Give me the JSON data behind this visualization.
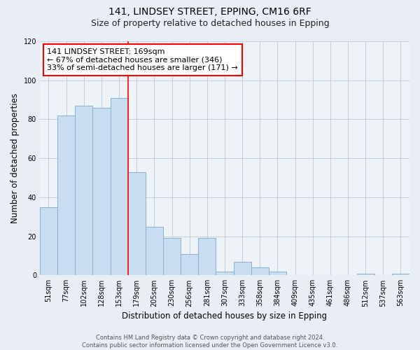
{
  "title": "141, LINDSEY STREET, EPPING, CM16 6RF",
  "subtitle": "Size of property relative to detached houses in Epping",
  "xlabel": "Distribution of detached houses by size in Epping",
  "ylabel": "Number of detached properties",
  "bar_color": "#c8ddf0",
  "bar_edge_color": "#8ab0d0",
  "background_color": "#e8eef4",
  "plot_bg_color": "#eef3f8",
  "categories": [
    "51sqm",
    "77sqm",
    "102sqm",
    "128sqm",
    "153sqm",
    "179sqm",
    "205sqm",
    "230sqm",
    "256sqm",
    "281sqm",
    "307sqm",
    "333sqm",
    "358sqm",
    "384sqm",
    "409sqm",
    "435sqm",
    "461sqm",
    "486sqm",
    "512sqm",
    "537sqm",
    "563sqm"
  ],
  "values": [
    35,
    82,
    87,
    86,
    91,
    53,
    25,
    19,
    11,
    19,
    2,
    7,
    4,
    2,
    0,
    0,
    0,
    0,
    1,
    0,
    1
  ],
  "ylim": [
    0,
    120
  ],
  "yticks": [
    0,
    20,
    40,
    60,
    80,
    100,
    120
  ],
  "red_line_x": 4.5,
  "property_line_label": "141 LINDSEY STREET: 169sqm",
  "annotation_line1": "← 67% of detached houses are smaller (346)",
  "annotation_line2": "33% of semi-detached houses are larger (171) →",
  "footer_line1": "Contains HM Land Registry data © Crown copyright and database right 2024.",
  "footer_line2": "Contains public sector information licensed under the Open Government Licence v3.0.",
  "grid_color": "#c0cfe0",
  "title_fontsize": 10,
  "subtitle_fontsize": 9,
  "axis_label_fontsize": 8.5,
  "tick_fontsize": 7,
  "annotation_fontsize": 8,
  "footer_fontsize": 6
}
